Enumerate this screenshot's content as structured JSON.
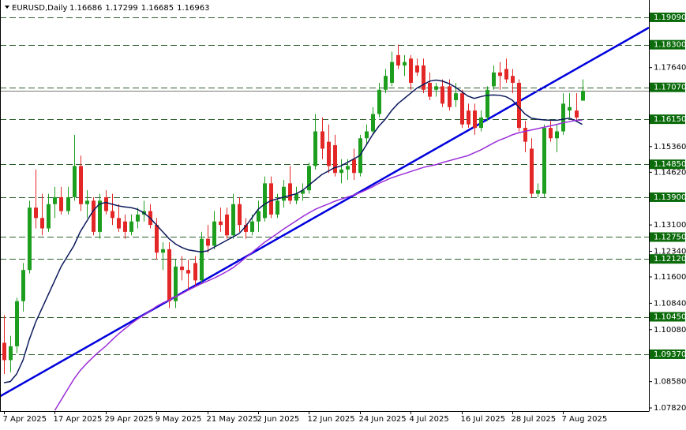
{
  "chart_data": {
    "type": "candlestick",
    "title": "EURUSD,Daily",
    "categories": [
      "7 Apr 2025",
      null,
      null,
      null,
      null,
      null,
      null,
      null,
      "17 Apr 2025",
      null,
      null,
      null,
      null,
      null,
      null,
      null,
      "29 Apr 2025",
      null,
      null,
      null,
      null,
      null,
      null,
      null,
      "9 May 2025",
      null,
      null,
      null,
      null,
      null,
      null,
      null,
      "21 May 2025",
      null,
      null,
      null,
      null,
      null,
      null,
      null,
      "2 Jun 2025",
      null,
      null,
      null,
      null,
      null,
      null,
      null,
      "12 Jun 2025",
      null,
      null,
      null,
      null,
      null,
      null,
      null,
      "24 Jun 2025",
      null,
      null,
      null,
      null,
      null,
      null,
      null,
      "4 Jul 2025",
      null,
      null,
      null,
      null,
      null,
      null,
      null,
      "16 Jul 2025",
      null,
      null,
      null,
      null,
      null,
      null,
      null,
      "28 Jul 2025",
      null,
      null,
      null,
      null,
      null,
      null,
      null,
      "7 Aug 2025",
      null,
      null,
      null
    ],
    "open": [
      1.097,
      1.092,
      1.096,
      1.109,
      1.118,
      1.136,
      1.133,
      1.13,
      1.137,
      1.139,
      1.135,
      1.139,
      1.148,
      1.137,
      1.138,
      1.129,
      1.139,
      1.135,
      1.133,
      1.132,
      1.129,
      1.132,
      1.134,
      1.135,
      1.131,
      1.123,
      1.124,
      1.109,
      1.119,
      1.118,
      1.12,
      1.115,
      1.127,
      1.125,
      1.132,
      1.134,
      1.128,
      1.137,
      1.131,
      1.129,
      1.132,
      1.133,
      1.143,
      1.134,
      1.138,
      1.143,
      1.138,
      1.14,
      1.141,
      1.148,
      1.158,
      1.155,
      1.154,
      1.146,
      1.147,
      1.15,
      1.146,
      1.156,
      1.158,
      1.163,
      1.17,
      1.172,
      1.18,
      1.177,
      1.179,
      1.177,
      1.177,
      1.172,
      1.17,
      1.171,
      1.171,
      1.167,
      1.169,
      1.164,
      1.164,
      1.159,
      1.162,
      1.171,
      1.175,
      1.176,
      1.174,
      1.172,
      1.159,
      1.153,
      1.14,
      1.14,
      1.159,
      1.156,
      1.158,
      1.164,
      1.164,
      1.16686
    ],
    "high": [
      1.105,
      1.099,
      1.11,
      1.12,
      1.138,
      1.147,
      1.14,
      1.14,
      1.142,
      1.142,
      1.142,
      1.157,
      1.151,
      1.141,
      1.139,
      1.14,
      1.141,
      1.14,
      1.137,
      1.134,
      1.134,
      1.136,
      1.138,
      1.137,
      1.133,
      1.126,
      1.126,
      1.121,
      1.122,
      1.121,
      1.122,
      1.129,
      1.131,
      1.135,
      1.136,
      1.136,
      1.14,
      1.139,
      1.133,
      1.134,
      1.138,
      1.145,
      1.145,
      1.14,
      1.144,
      1.148,
      1.142,
      1.143,
      1.149,
      1.163,
      1.162,
      1.16,
      1.157,
      1.15,
      1.15,
      1.153,
      1.157,
      1.16,
      1.165,
      1.172,
      1.176,
      1.181,
      1.183,
      1.18,
      1.18,
      1.179,
      1.179,
      1.175,
      1.172,
      1.173,
      1.173,
      1.172,
      1.17,
      1.166,
      1.166,
      1.164,
      1.171,
      1.177,
      1.178,
      1.179,
      1.176,
      1.173,
      1.161,
      1.156,
      1.143,
      1.16,
      1.161,
      1.16,
      1.169,
      1.169,
      1.169,
      1.17299
    ],
    "low": [
      1.088,
      1.0885,
      1.094,
      1.106,
      1.117,
      1.13,
      1.128,
      1.129,
      1.133,
      1.134,
      1.134,
      1.138,
      1.135,
      1.133,
      1.128,
      1.127,
      1.134,
      1.131,
      1.129,
      1.127,
      1.128,
      1.13,
      1.132,
      1.13,
      1.121,
      1.118,
      1.107,
      1.107,
      1.115,
      1.112,
      1.113,
      1.114,
      1.123,
      1.124,
      1.129,
      1.127,
      1.127,
      1.129,
      1.127,
      1.128,
      1.129,
      1.132,
      1.133,
      1.133,
      1.136,
      1.137,
      1.137,
      1.138,
      1.14,
      1.147,
      1.15,
      1.146,
      1.145,
      1.143,
      1.144,
      1.144,
      1.145,
      1.154,
      1.157,
      1.162,
      1.169,
      1.171,
      1.176,
      1.174,
      1.17,
      1.174,
      1.169,
      1.167,
      1.168,
      1.165,
      1.164,
      1.165,
      1.159,
      1.159,
      1.157,
      1.158,
      1.161,
      1.17,
      1.17,
      1.172,
      1.169,
      1.158,
      1.152,
      1.139,
      1.139,
      1.139,
      1.155,
      1.152,
      1.157,
      1.162,
      1.161,
      1.16685
    ],
    "close": [
      1.092,
      1.096,
      1.109,
      1.118,
      1.136,
      1.133,
      1.13,
      1.137,
      1.139,
      1.135,
      1.139,
      1.148,
      1.137,
      1.138,
      1.129,
      1.138,
      1.135,
      1.133,
      1.13,
      1.129,
      1.132,
      1.134,
      1.135,
      1.131,
      1.123,
      1.124,
      1.109,
      1.119,
      1.118,
      1.117,
      1.115,
      1.127,
      1.125,
      1.132,
      1.131,
      1.128,
      1.137,
      1.131,
      1.129,
      1.132,
      1.135,
      1.143,
      1.134,
      1.138,
      1.142,
      1.138,
      1.14,
      1.141,
      1.148,
      1.158,
      1.153,
      1.148,
      1.146,
      1.147,
      1.148,
      1.146,
      1.156,
      1.158,
      1.163,
      1.17,
      1.174,
      1.178,
      1.177,
      1.178,
      1.172,
      1.175,
      1.17,
      1.168,
      1.171,
      1.166,
      1.165,
      1.169,
      1.16,
      1.16,
      1.159,
      1.162,
      1.17,
      1.175,
      1.174,
      1.173,
      1.172,
      1.159,
      1.155,
      1.14,
      1.141,
      1.159,
      1.156,
      1.158,
      1.166,
      1.165,
      1.162,
      1.16963
    ],
    "up_color": "#1e9e1e",
    "down_color": "#e32626",
    "series": [
      {
        "color": "#0c1a5c",
        "values": [
          1.0855,
          1.0858,
          1.088,
          1.092,
          1.098,
          1.103,
          1.107,
          1.111,
          1.115,
          1.119,
          1.122,
          1.125,
          1.129,
          1.132,
          1.135,
          1.137,
          1.1375,
          1.137,
          1.1365,
          1.1362,
          1.136,
          1.1355,
          1.1345,
          1.133,
          1.131,
          1.129,
          1.127,
          1.1255,
          1.1245,
          1.1238,
          1.1235,
          1.1232,
          1.1235,
          1.1245,
          1.1255,
          1.1265,
          1.1275,
          1.1285,
          1.1305,
          1.133,
          1.1355,
          1.137,
          1.138,
          1.1385,
          1.139,
          1.1395,
          1.14,
          1.141,
          1.1425,
          1.144,
          1.1455,
          1.1465,
          1.1475,
          1.148,
          1.149,
          1.15,
          1.151,
          1.154,
          1.157,
          1.1595,
          1.1615,
          1.164,
          1.166,
          1.1675,
          1.169,
          1.1705,
          1.1715,
          1.1725,
          1.1728,
          1.1725,
          1.1718,
          1.1708,
          1.1695,
          1.1682,
          1.1675,
          1.168,
          1.1684,
          1.1685,
          1.1684,
          1.168,
          1.167,
          1.165,
          1.163,
          1.1618,
          1.1615,
          1.1613,
          1.1612,
          1.1612,
          1.1615,
          1.1618,
          1.161,
          1.16
        ]
      },
      {
        "color": "#9b30d9",
        "values": [
          null,
          null,
          null,
          null,
          null,
          null,
          null,
          null,
          1.0775,
          1.0805,
          1.0835,
          1.0865,
          1.089,
          1.091,
          1.0928,
          1.0945,
          1.096,
          1.0978,
          1.0995,
          1.101,
          1.1025,
          1.1038,
          1.105,
          1.1062,
          1.1075,
          1.1085,
          1.1093,
          1.1103,
          1.1112,
          1.1122,
          1.1131,
          1.114,
          1.1148,
          1.1156,
          1.1165,
          1.1175,
          1.1186,
          1.12,
          1.1215,
          1.123,
          1.1245,
          1.126,
          1.1272,
          1.1285,
          1.1298,
          1.131,
          1.1322,
          1.1334,
          1.1345,
          1.1355,
          1.1363,
          1.137,
          1.1378,
          1.1384,
          1.139,
          1.1396,
          1.1403,
          1.1411,
          1.142,
          1.143,
          1.1438,
          1.1446,
          1.1452,
          1.1458,
          1.1464,
          1.147,
          1.1476,
          1.148,
          1.1484,
          1.149,
          1.1495,
          1.15,
          1.1505,
          1.151,
          1.1518,
          1.1526,
          1.1536,
          1.1546,
          1.1555,
          1.1562,
          1.157,
          1.1576,
          1.158,
          1.1584,
          1.1588,
          1.1592,
          1.1596,
          1.16,
          1.1605,
          1.1608,
          1.1612,
          1.1612
        ]
      }
    ],
    "trendline": {
      "color": "#0000dd",
      "indices": [
        0,
        91
      ],
      "values": [
        1.0822,
        1.177
      ]
    },
    "levels": {
      "color": "#2e5e2e",
      "label_color": "#0b6b0b",
      "values": [
        {
          "value": 1.1909,
          "label": "1.19090"
        },
        {
          "value": 1.183,
          "label": "1.18300"
        },
        {
          "value": 1.1707,
          "label": "1.17070"
        },
        {
          "value": 1.1615,
          "label": "1.16150"
        },
        {
          "value": 1.1485,
          "label": "1.14850"
        },
        {
          "value": 1.139,
          "label": "1.13900"
        },
        {
          "value": 1.1275,
          "label": "1.12750"
        },
        {
          "value": 1.1212,
          "label": "1.12120"
        },
        {
          "value": 1.1045,
          "label": "1.10450"
        },
        {
          "value": 1.0937,
          "label": "1.09370"
        }
      ]
    },
    "ylim": [
      1.0773,
      1.1959
    ],
    "yticks": [
      {
        "value": 1.1764,
        "label": "1.17640"
      },
      {
        "value": 1.1536,
        "label": "1.15360"
      },
      {
        "value": 1.1462,
        "label": "1.14620"
      },
      {
        "value": 1.131,
        "label": "1.13100"
      },
      {
        "value": 1.1234,
        "label": "1.12340"
      },
      {
        "value": 1.116,
        "label": "1.11600"
      },
      {
        "value": 1.1084,
        "label": "1.10840"
      },
      {
        "value": 1.1008,
        "label": "1.10080"
      },
      {
        "value": 1.0858,
        "label": "1.08580"
      },
      {
        "value": 1.0782,
        "label": "1.07820"
      }
    ],
    "grid": false
  }
}
